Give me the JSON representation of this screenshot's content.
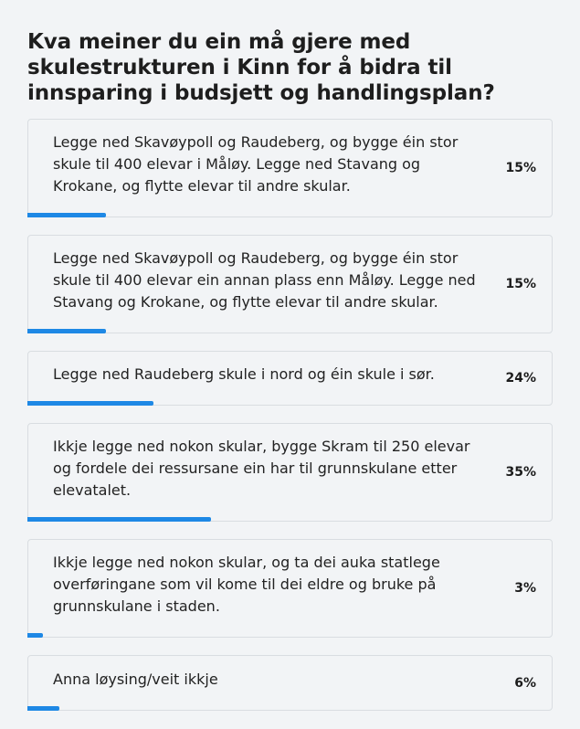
{
  "poll": {
    "question": "Kva meiner du ein må gjere med skulestrukturen i Kinn for å bidra til innsparing i budsjett og handlingsplan?",
    "options": [
      {
        "label": "Legge ned Skavøypoll og Raudeberg, og bygge éin stor skule til 400 elevar i Måløy. Legge ned Stavang og Krokane, og flytte elevar til andre skular.",
        "percent_text": "15%",
        "percent": 15
      },
      {
        "label": "Legge ned Skavøypoll og Raudeberg, og bygge éin stor skule til 400 elevar ein annan plass enn Måløy. Legge ned Stavang og Krokane, og flytte elevar til andre skular.",
        "percent_text": "15%",
        "percent": 15
      },
      {
        "label": "Legge ned Raudeberg skule i nord og éin skule i sør.",
        "percent_text": "24%",
        "percent": 24
      },
      {
        "label": "Ikkje legge ned nokon skular, bygge Skram til 250 elevar og fordele dei ressursane ein har til grunnskulane etter elevatalet.",
        "percent_text": "35%",
        "percent": 35
      },
      {
        "label": "Ikkje legge ned nokon skular, og ta dei auka statlege overføringane som vil kome til dei eldre og bruke på grunnskulane i staden.",
        "percent_text": "3%",
        "percent": 3
      },
      {
        "label": "Anna løysing/veit ikkje",
        "percent_text": "6%",
        "percent": 6
      }
    ],
    "bar_color": "#1e88e5"
  }
}
